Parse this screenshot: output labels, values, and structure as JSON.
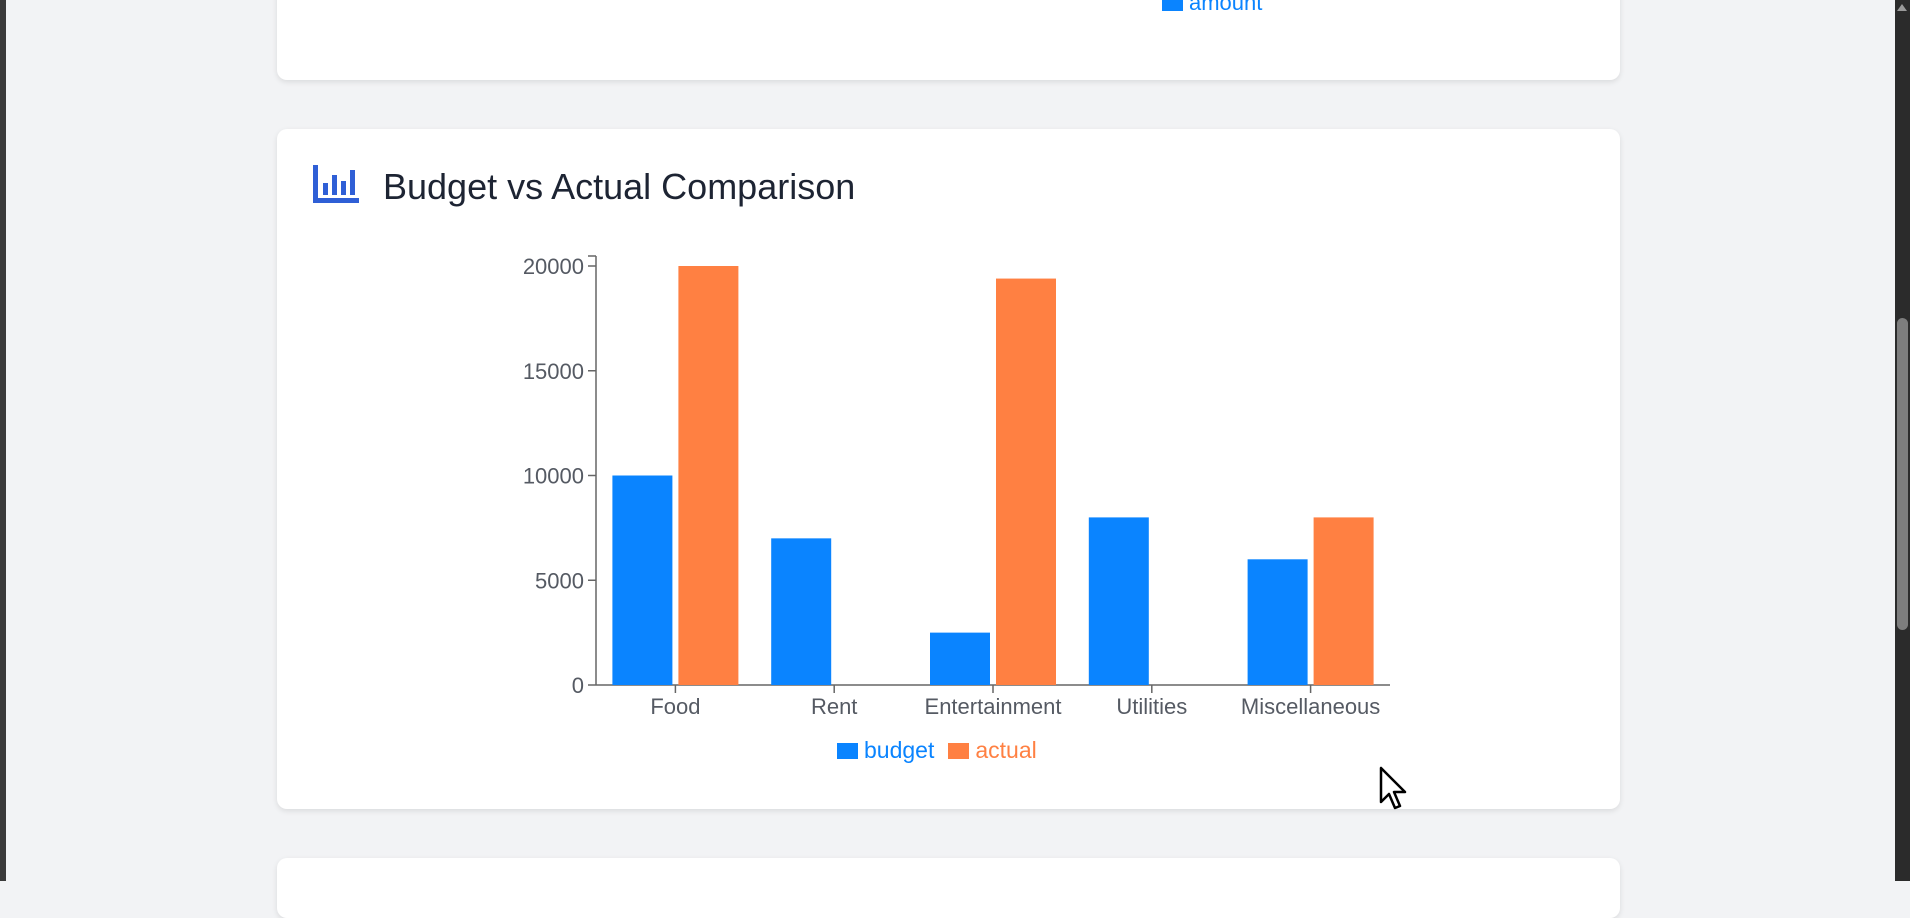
{
  "colors": {
    "budget": "#0a84ff",
    "actual": "#ff8042",
    "amount": "#0a84ff",
    "title_icon": "#2f5fd6"
  },
  "prev_chart": {
    "legend_label": "amount"
  },
  "card": {
    "title": "Budget vs Actual Comparison",
    "icon": "bar-chart-icon"
  },
  "chart_data": {
    "type": "bar",
    "title": "Budget vs Actual Comparison",
    "categories": [
      "Food",
      "Rent",
      "Entertainment",
      "Utilities",
      "Miscellaneous"
    ],
    "series": [
      {
        "name": "budget",
        "values": [
          10000,
          7000,
          2500,
          8000,
          6000
        ]
      },
      {
        "name": "actual",
        "values": [
          20000,
          0,
          19400,
          0,
          8000
        ]
      }
    ],
    "ylim": [
      0,
      20000
    ],
    "yticks": [
      "0",
      "5000",
      "10000",
      "15000",
      "20000"
    ],
    "xlabel": "",
    "ylabel": "",
    "grid": false,
    "legend": "bottom"
  }
}
